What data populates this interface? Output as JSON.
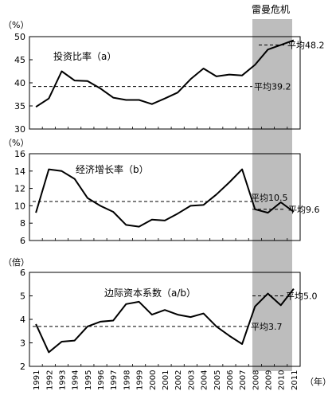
{
  "header": {
    "crisis_label": "雷曼危机"
  },
  "x_axis": {
    "years": [
      "1991",
      "1992",
      "1993",
      "1994",
      "1995",
      "1996",
      "1997",
      "1998",
      "1999",
      "2000",
      "2001",
      "2002",
      "2003",
      "2004",
      "2005",
      "2006",
      "2007",
      "2008",
      "2009",
      "2010",
      "2011"
    ],
    "unit": "（年）"
  },
  "colors": {
    "line": "#000000",
    "shade": "#bdbdbd"
  },
  "chart_data": [
    {
      "type": "line",
      "title": "投资比率（a）",
      "ylabel": "（%）",
      "ylim": [
        30,
        50
      ],
      "yticks": [
        30,
        35,
        40,
        45,
        50
      ],
      "series": [
        {
          "values": [
            34.8,
            36.6,
            42.5,
            40.5,
            40.4,
            38.8,
            36.8,
            36.3,
            36.3,
            35.4,
            36.6,
            37.9,
            40.8,
            43.1,
            41.4,
            41.8,
            41.6,
            43.9,
            47.2,
            48.2,
            49.2
          ]
        }
      ],
      "average": {
        "value": 39.2,
        "label": "平均39.2"
      },
      "average_recent": {
        "value": 48.2,
        "label": "平均48.2"
      }
    },
    {
      "type": "line",
      "title": "经济增长率（b）",
      "ylabel": "（%）",
      "ylim": [
        6,
        16
      ],
      "yticks": [
        6,
        8,
        10,
        12,
        14,
        16
      ],
      "series": [
        {
          "values": [
            9.2,
            14.2,
            14.0,
            13.1,
            10.9,
            10.0,
            9.3,
            7.8,
            7.6,
            8.4,
            8.3,
            9.1,
            10.0,
            10.1,
            11.3,
            12.7,
            14.2,
            9.6,
            9.2,
            10.4,
            9.3
          ]
        }
      ],
      "average": {
        "value": 10.5,
        "label": "平均10.5"
      },
      "average_recent": {
        "value": 9.6,
        "label": "平均9.6"
      }
    },
    {
      "type": "line",
      "title": "边际资本系数（a/b）",
      "ylabel": "（倍）",
      "ylim": [
        2,
        6
      ],
      "yticks": [
        2,
        3,
        4,
        5,
        6
      ],
      "series": [
        {
          "values": [
            3.8,
            2.6,
            3.05,
            3.1,
            3.7,
            3.9,
            3.95,
            4.65,
            4.75,
            4.2,
            4.4,
            4.2,
            4.1,
            4.25,
            3.7,
            3.3,
            2.95,
            4.55,
            5.1,
            4.6,
            5.3
          ]
        }
      ],
      "average": {
        "value": 3.7,
        "label": "平均3.7"
      },
      "average_recent": {
        "value": 5.0,
        "label": "平均5.0"
      }
    }
  ]
}
